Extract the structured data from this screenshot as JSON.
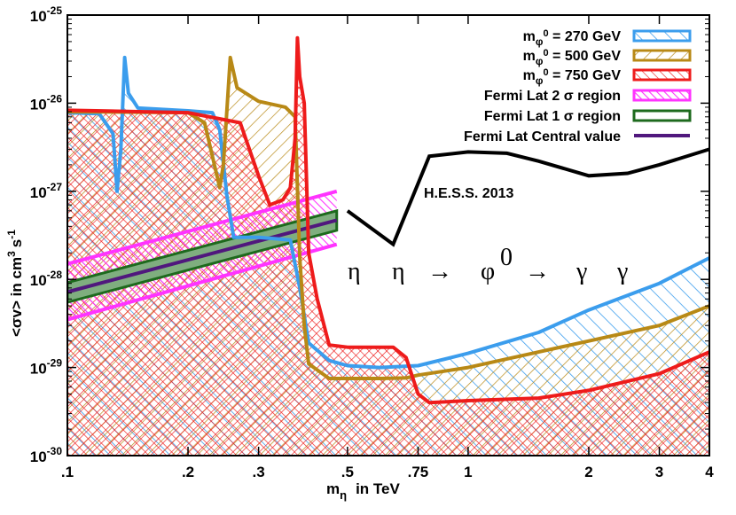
{
  "chart_data": {
    "type": "area",
    "xlabel": "m",
    "xlabel_sub": "η",
    "xlabel_unit": "in TeV",
    "ylabel": "<σv> in cm",
    "ylabel_sup1": "3",
    "ylabel_mid": "s",
    "ylabel_sup2": "-1",
    "x_scale": "log",
    "y_scale": "log",
    "xlim": [
      0.1,
      4
    ],
    "ylim": [
      1e-30,
      1e-25
    ],
    "x_ticks": [
      {
        "v": 0.1,
        "label": ".1"
      },
      {
        "v": 0.2,
        "label": ".2"
      },
      {
        "v": 0.3,
        "label": ".3"
      },
      {
        "v": 0.5,
        "label": ".5"
      },
      {
        "v": 0.75,
        "label": ".75"
      },
      {
        "v": 1,
        "label": "1"
      },
      {
        "v": 2,
        "label": "2"
      },
      {
        "v": 3,
        "label": "3"
      },
      {
        "v": 4,
        "label": "4"
      }
    ],
    "y_ticks": [
      {
        "v": 1e-30,
        "base": "10",
        "exp": "-30"
      },
      {
        "v": 1e-29,
        "base": "10",
        "exp": "-29"
      },
      {
        "v": 1e-28,
        "base": "10",
        "exp": "-28"
      },
      {
        "v": 1e-27,
        "base": "10",
        "exp": "-27"
      },
      {
        "v": 1e-26,
        "base": "10",
        "exp": "-26"
      },
      {
        "v": 1e-25,
        "base": "10",
        "exp": "-25"
      }
    ],
    "legend_position": "top-right",
    "series": [
      {
        "name_main": "m",
        "name_sub": "φ",
        "name_sup": "0",
        "name_rest": " = 270 GeV",
        "color": "#3b9ded",
        "hatch": "sparse-diagonal",
        "points": [
          [
            0.1,
            7.8e-27
          ],
          [
            0.12,
            7.6e-27
          ],
          [
            0.13,
            4.5e-27
          ],
          [
            0.133,
            1e-27
          ],
          [
            0.136,
            3e-27
          ],
          [
            0.139,
            3.3e-26
          ],
          [
            0.142,
            1.3e-26
          ],
          [
            0.15,
            8.8e-27
          ],
          [
            0.2,
            8.2e-27
          ],
          [
            0.23,
            7.8e-27
          ],
          [
            0.24,
            5e-27
          ],
          [
            0.25,
            9e-28
          ],
          [
            0.26,
            3e-28
          ],
          [
            0.3,
            3e-28
          ],
          [
            0.36,
            2.8e-28
          ],
          [
            0.38,
            8e-29
          ],
          [
            0.4,
            1.9e-29
          ],
          [
            0.45,
            1.2e-29
          ],
          [
            0.5,
            1.05e-29
          ],
          [
            0.6,
            1e-29
          ],
          [
            0.75,
            1.05e-29
          ],
          [
            1,
            1.45e-29
          ],
          [
            1.5,
            2.5e-29
          ],
          [
            2,
            4.5e-29
          ],
          [
            3,
            9e-29
          ],
          [
            4,
            1.75e-28
          ]
        ]
      },
      {
        "name_main": "m",
        "name_sub": "φ",
        "name_sup": "0",
        "name_rest": " = 500 GeV",
        "color": "#b88916",
        "hatch": "medium-diagonal",
        "points": [
          [
            0.1,
            8e-27
          ],
          [
            0.2,
            7.8e-27
          ],
          [
            0.22,
            6e-27
          ],
          [
            0.23,
            2.5e-27
          ],
          [
            0.24,
            1.1e-27
          ],
          [
            0.245,
            2e-27
          ],
          [
            0.255,
            3.3e-26
          ],
          [
            0.265,
            1.5e-26
          ],
          [
            0.3,
            1.05e-26
          ],
          [
            0.35,
            9e-27
          ],
          [
            0.37,
            7e-27
          ],
          [
            0.38,
            1.8e-28
          ],
          [
            0.39,
            3e-29
          ],
          [
            0.4,
            1.1e-29
          ],
          [
            0.45,
            7.5e-30
          ],
          [
            0.6,
            7.5e-30
          ],
          [
            0.7,
            7.6e-30
          ],
          [
            0.75,
            8.2e-30
          ],
          [
            1,
            1e-29
          ],
          [
            1.5,
            1.5e-29
          ],
          [
            2,
            2e-29
          ],
          [
            3,
            3e-29
          ],
          [
            4,
            5e-29
          ]
        ]
      },
      {
        "name_main": "m",
        "name_sub": "φ",
        "name_sup": "0",
        "name_rest": " = 750 GeV",
        "color": "#ee1b1b",
        "hatch": "dense-diagonal",
        "points": [
          [
            0.1,
            8.3e-27
          ],
          [
            0.2,
            7.8e-27
          ],
          [
            0.27,
            6e-27
          ],
          [
            0.3,
            1.5e-27
          ],
          [
            0.32,
            7e-28
          ],
          [
            0.345,
            8e-28
          ],
          [
            0.36,
            1.1e-27
          ],
          [
            0.37,
            4e-27
          ],
          [
            0.375,
            5.5e-26
          ],
          [
            0.38,
            2e-26
          ],
          [
            0.39,
            1e-26
          ],
          [
            0.4,
            2e-28
          ],
          [
            0.42,
            6e-29
          ],
          [
            0.45,
            1.8e-29
          ],
          [
            0.5,
            1.7e-29
          ],
          [
            0.65,
            1.7e-29
          ],
          [
            0.7,
            1.3e-29
          ],
          [
            0.75,
            5e-30
          ],
          [
            0.8,
            4e-30
          ],
          [
            1,
            4.2e-30
          ],
          [
            1.5,
            4.5e-30
          ],
          [
            2,
            5.5e-30
          ],
          [
            3,
            8.5e-30
          ],
          [
            4,
            1.5e-29
          ]
        ]
      }
    ],
    "fermi": {
      "x": [
        0.1,
        0.47
      ],
      "sigma2_label": "Fermi Lat 2 σ region",
      "sigma2_low": [
        3.5e-29,
        2.5e-28
      ],
      "sigma2_high": [
        1.5e-28,
        1e-27
      ],
      "sigma2_color": "#ff33ff",
      "sigma1_label": "Fermi Lat 1 σ region",
      "sigma1_low": [
        5.5e-29,
        3.6e-28
      ],
      "sigma1_high": [
        9.2e-29,
        6e-28
      ],
      "sigma1_color": "#1d6a1d",
      "sigma1_fill": "#7fae7f",
      "central_label": "Fermi Lat Central value",
      "central": [
        7.2e-29,
        4.7e-28
      ],
      "central_color": "#50187d"
    },
    "hess": {
      "label": "H.E.S.S. 2013",
      "color": "#000000",
      "points": [
        [
          0.5,
          6e-28
        ],
        [
          0.65,
          2.5e-28
        ],
        [
          0.8,
          2.5e-27
        ],
        [
          1,
          2.8e-27
        ],
        [
          1.25,
          2.7e-27
        ],
        [
          1.5,
          2.2e-27
        ],
        [
          2,
          1.5e-27
        ],
        [
          2.5,
          1.6e-27
        ],
        [
          3,
          2e-27
        ],
        [
          4,
          3e-27
        ]
      ]
    },
    "annotation": {
      "parts": [
        {
          "text": "η",
          "dx": 0
        },
        {
          "text": "η",
          "dx": 50
        },
        {
          "text": "→",
          "dx": 90
        },
        {
          "text": "φ",
          "dx": 150
        },
        {
          "text": "0",
          "dx": 172,
          "sup": true
        },
        {
          "text": "→",
          "dx": 200
        },
        {
          "text": "γ",
          "dx": 258
        },
        {
          "text": "γ",
          "dx": 304
        }
      ]
    }
  }
}
